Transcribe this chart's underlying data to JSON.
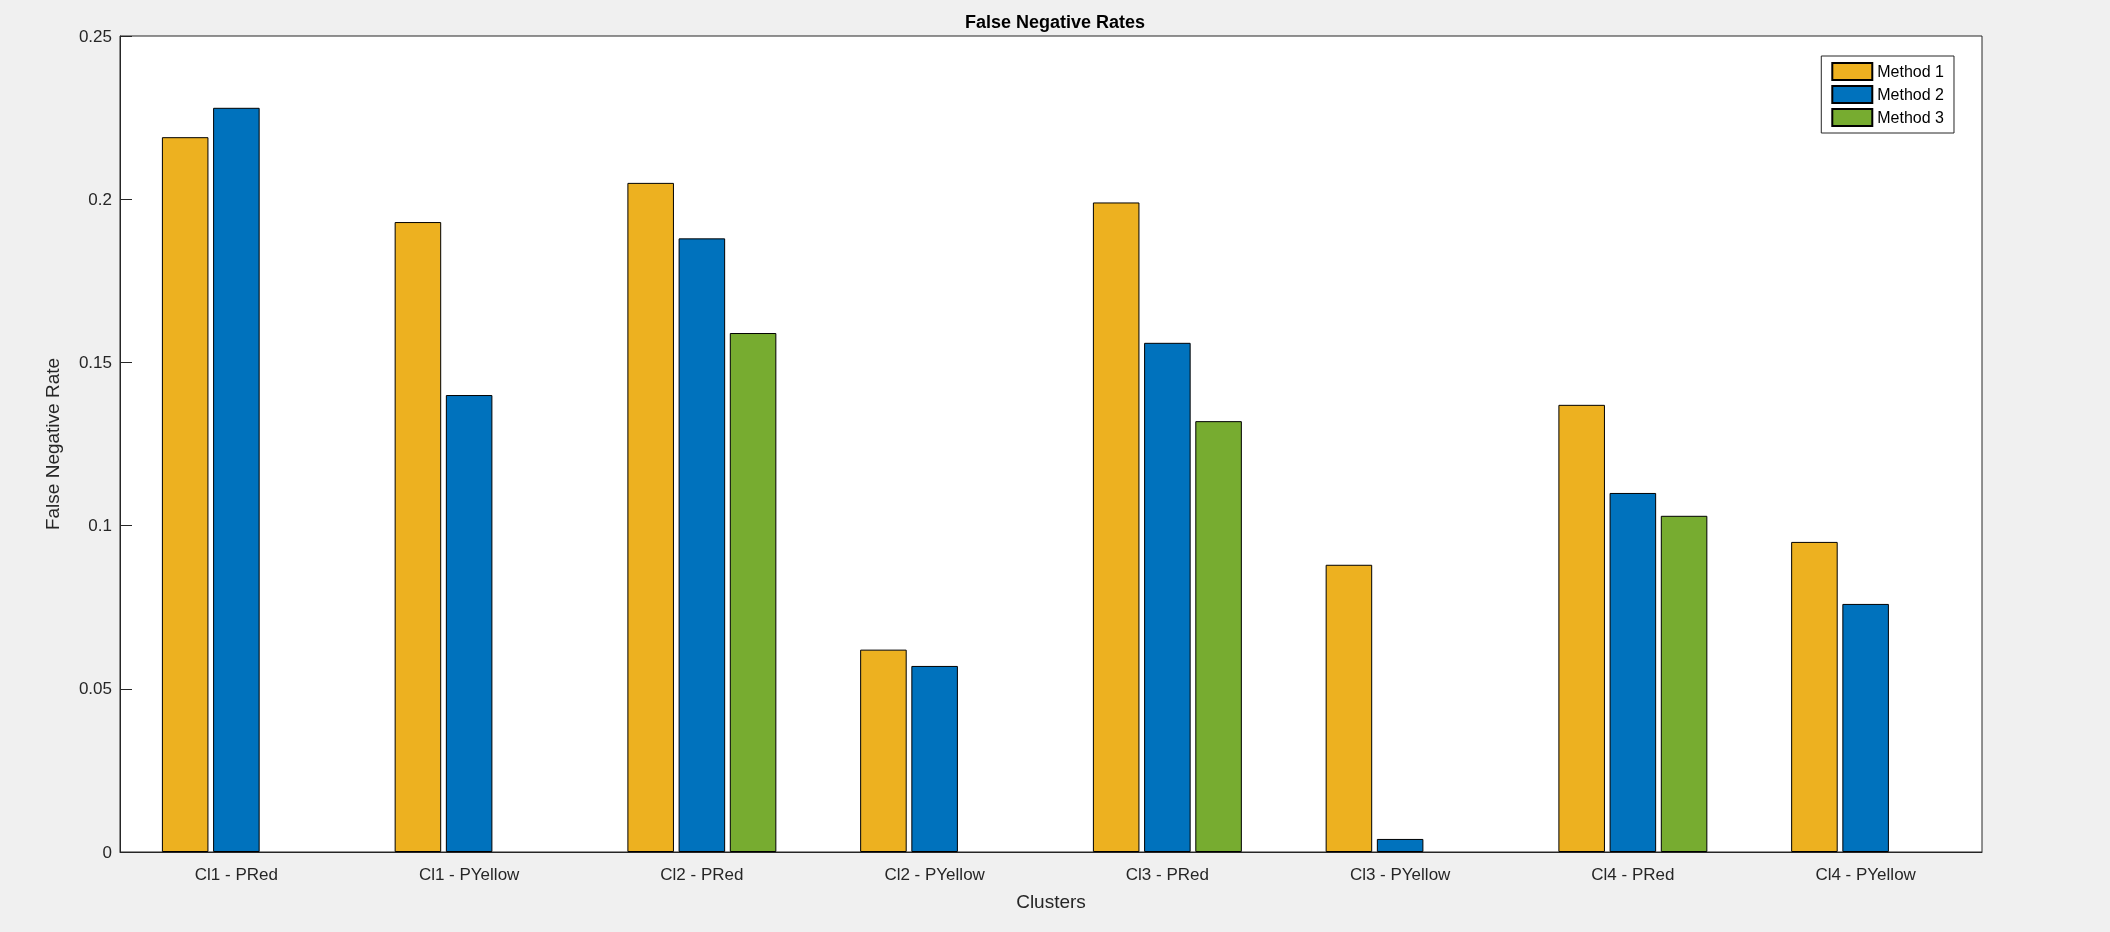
{
  "chart_data": {
    "type": "bar",
    "title": "False Negative Rates",
    "xlabel": "Clusters",
    "ylabel": "False Negative Rate",
    "categories": [
      "Cl1 - PRed",
      "Cl1 - PYellow",
      "Cl2 - PRed",
      "Cl2 - PYellow",
      "Cl3 - PRed",
      "Cl3 - PYellow",
      "Cl4 - PRed",
      "Cl4 - PYellow"
    ],
    "series": [
      {
        "name": "Method 1",
        "color": "#edb120",
        "values": [
          0.219,
          0.193,
          0.205,
          0.062,
          0.199,
          0.088,
          0.137,
          0.095
        ]
      },
      {
        "name": "Method 2",
        "color": "#0072bd",
        "values": [
          0.228,
          0.14,
          0.188,
          0.057,
          0.156,
          0.004,
          0.11,
          0.076
        ]
      },
      {
        "name": "Method 3",
        "color": "#77ac30",
        "values": [
          null,
          null,
          0.159,
          null,
          0.132,
          null,
          0.103,
          null
        ]
      }
    ],
    "ylim": [
      0,
      0.25
    ],
    "yticks": [
      0,
      0.05,
      0.1,
      0.15,
      0.2,
      0.25
    ],
    "grid": false,
    "legend": "top right"
  }
}
